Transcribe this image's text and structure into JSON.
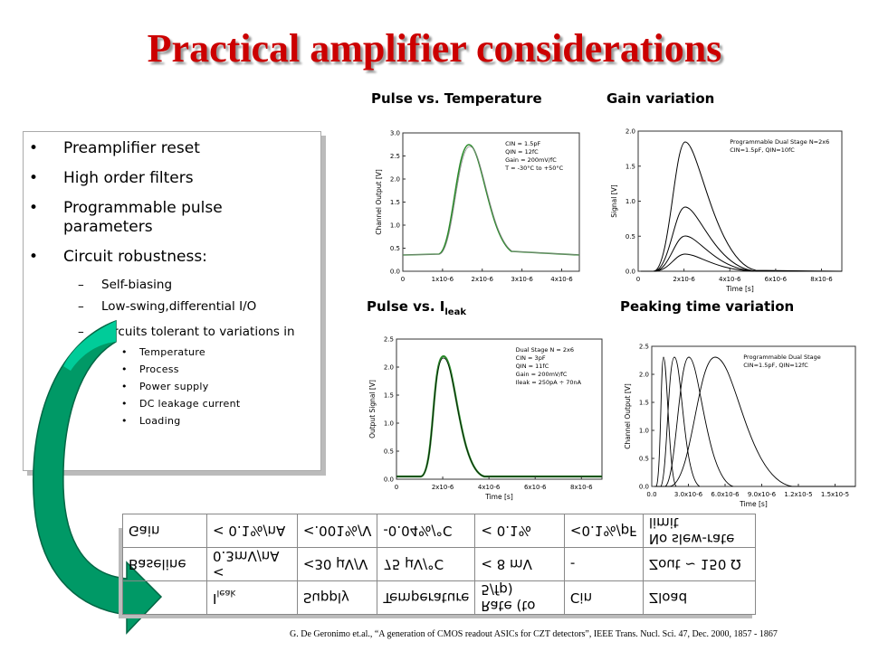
{
  "title": "Practical amplifier considerations",
  "bullets": [
    "Preamplifier reset",
    "High order filters",
    "Programmable pulse parameters",
    "Circuit robustness:"
  ],
  "sub_bullets": [
    "Self-biasing",
    "Low-swing,differential I/O",
    "Circuits tolerant to variations in"
  ],
  "sub_sub_bullets": [
    "Temperature",
    "Process",
    "Power supply",
    "DC leakage current",
    "Loading"
  ],
  "plots": [
    {
      "title": "Pulse vs. Temperature",
      "ylabel": "Channel Output [V]",
      "yticks": [
        "0.0",
        "0.5",
        "1.0",
        "1.5",
        "2.0",
        "2.5",
        "3.0"
      ],
      "xticks": [
        "0",
        "1x10-6",
        "2x10-6",
        "3x10-6",
        "4x10-6"
      ],
      "annotations": [
        "CIN = 1.5pF",
        "QIN = 12fC",
        "Gain = 200mV/fC",
        "T = -30°C to +50°C"
      ]
    },
    {
      "title": "Gain variation",
      "ylabel": "Signal [V]",
      "xlabel": "Time [s]",
      "yticks": [
        "0.0",
        "0.5",
        "1.0",
        "1.5",
        "2.0"
      ],
      "xticks": [
        "0",
        "2x10-6",
        "4x10-6",
        "6x10-6",
        "8x10-6"
      ],
      "annotations": [
        "Programmable Dual Stage N=2x6",
        "CIN=1.5pF, QIN=10fC"
      ]
    },
    {
      "title": "Pulse vs. I",
      "title_sub": "leak",
      "ylabel": "Output Signal [V]",
      "xlabel": "Time [s]",
      "yticks": [
        "0.0",
        "0.5",
        "1.0",
        "1.5",
        "2.0",
        "2.5"
      ],
      "xticks": [
        "0",
        "2x10-6",
        "4x10-6",
        "6x10-6",
        "8x10-6"
      ],
      "annotations": [
        "Dual Stage N = 2x6",
        "CIN = 3pF",
        "QIN = 11fC",
        "Gain = 200mV/fC",
        "Ileak = 250pA ÷ 70nA"
      ]
    },
    {
      "title": "Peaking time variation",
      "ylabel": "Channel Output [V]",
      "xlabel": "Time [s]",
      "yticks": [
        "0.0",
        "0.5",
        "1.0",
        "1.5",
        "2.0",
        "2.5"
      ],
      "xticks": [
        "0.0",
        "3.0x10-6",
        "6.0x10-6",
        "9.0x10-6",
        "1.2x10-5",
        "1.5x10-5"
      ],
      "annotations": [
        "Programmable Dual Stage",
        "CIN=1.5pF, QIN=12fC"
      ]
    }
  ],
  "table": {
    "header": [
      "I",
      "leak",
      "Supply",
      "Temperature",
      "Rate (to 5/fp)",
      "Cin",
      "Zload"
    ],
    "rows": [
      [
        "Gain",
        "< 0.1%/nA",
        "<.001%/V",
        "-0.04%/°C",
        "< 0.1%",
        "<0.1%/pF",
        "No slew-rate limit"
      ],
      [
        "Baseline",
        "< 0.3mV/nA",
        "<30 μV/V",
        "75 μV/°C",
        "< 8 mV",
        "-",
        "Zout ~ 150 Ω"
      ]
    ]
  },
  "citation": "G. De Geronimo et.al., “A generation of CMOS readout ASICs for CZT detectors”, IEEE Trans. Nucl. Sci. 47, Dec. 2000, 1857 - 1867"
}
